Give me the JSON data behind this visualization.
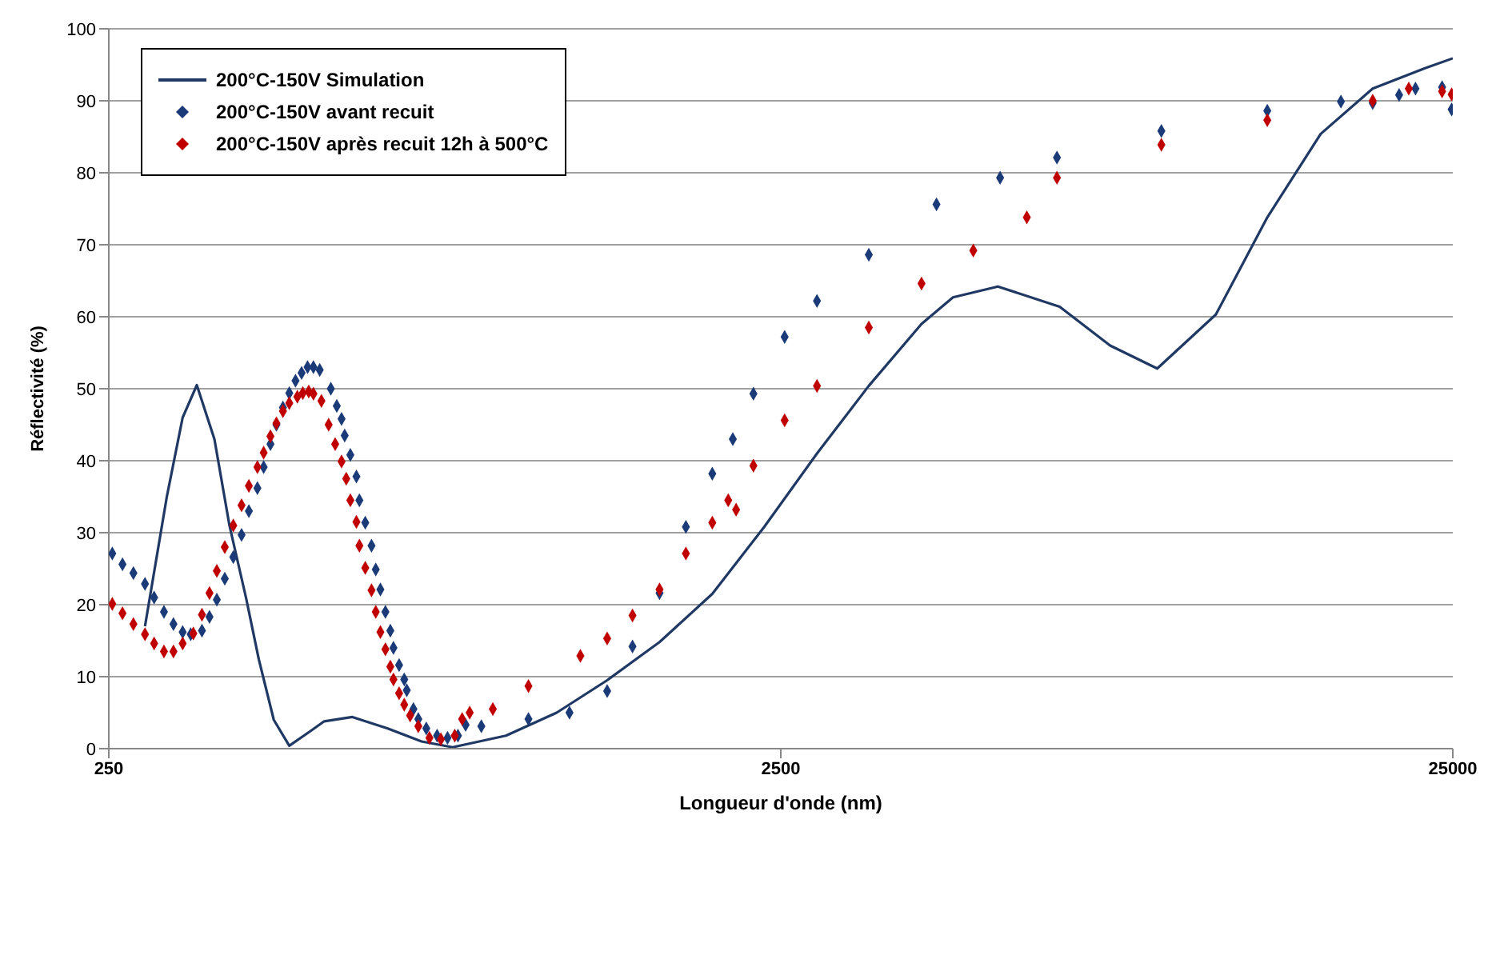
{
  "chart_data": {
    "type": "scatter",
    "xlabel": "Longueur d'onde (nm)",
    "ylabel": "Réflectivité (%)",
    "log": "x",
    "xlim": [
      250,
      25000
    ],
    "xticks": [
      250,
      2500,
      25000
    ],
    "ylim": [
      0,
      100
    ],
    "yticks": [
      0,
      10,
      20,
      30,
      40,
      50,
      60,
      70,
      80,
      90,
      100
    ],
    "grid": "y",
    "legend": "top left",
    "marker": "diamond",
    "series": [
      {
        "name": "200°C-150V Simulation",
        "type": "line",
        "marker": "none",
        "color": "#1f3864",
        "x": [
          283,
          305,
          322,
          338,
          359,
          378,
          400,
          418,
          440,
          464,
          500,
          523,
          576,
          650,
          730,
          812,
          975,
          1160,
          1379,
          1650,
          1977,
          2362,
          2830,
          3380,
          4049,
          4510,
          5260,
          6500,
          7727,
          9080,
          11100,
          13240,
          15900,
          19000,
          22690,
          25000
        ],
        "values": [
          17,
          35,
          46,
          50.5,
          43,
          31,
          21,
          12.4,
          4,
          0.4,
          2.5,
          3.8,
          4.4,
          2.8,
          1,
          0.2,
          1.8,
          5,
          9.5,
          14.8,
          21.5,
          30.8,
          41,
          50.4,
          59,
          62.7,
          64.2,
          61.4,
          56,
          52.8,
          60.3,
          73.8,
          85.4,
          91.7,
          94.5,
          95.9
        ]
      },
      {
        "name": "200°C-150V avant recuit",
        "color": "#1b3a78",
        "x": [
          253,
          262,
          272,
          283,
          292,
          302,
          312,
          322,
          331,
          344,
          353,
          362,
          372,
          383,
          394,
          404,
          416,
          425,
          435,
          444,
          454,
          464,
          474,
          484,
          494,
          504,
          515,
          535,
          546,
          555,
          561,
          572,
          584,
          590,
          602,
          615,
          624,
          634,
          645,
          656,
          663,
          676,
          688,
          694,
          710,
          722,
          742,
          770,
          798,
          827,
          849,
          896,
          1053,
          1212,
          1379,
          1504,
          1650,
          1806,
          1977,
          2121,
          2276,
          2533,
          2830,
          3380,
          4262,
          5300,
          6440,
          9210,
          13240,
          17040,
          19000,
          20800,
          22000,
          24100,
          24900
        ],
        "values": [
          27.1,
          25.6,
          24.4,
          22.9,
          21,
          19,
          17.3,
          16.2,
          15.9,
          16.4,
          18.3,
          20.7,
          23.6,
          26.6,
          29.7,
          33,
          36.2,
          39.1,
          42.3,
          45,
          47.4,
          49.4,
          51.1,
          52.2,
          53,
          53,
          52.6,
          50,
          47.6,
          45.8,
          43.5,
          40.8,
          37.8,
          34.5,
          31.4,
          28.2,
          24.9,
          22.1,
          19,
          16.4,
          14,
          11.6,
          9.6,
          8.1,
          5.5,
          4.1,
          2.8,
          1.8,
          1.5,
          1.8,
          3.3,
          3.1,
          4.1,
          5,
          8,
          14.2,
          21.6,
          30.8,
          38.2,
          43,
          49.3,
          57.2,
          62.2,
          68.6,
          75.6,
          79.3,
          82.1,
          85.8,
          88.6,
          89.9,
          89.7,
          90.8,
          91.7,
          91.9,
          88.8
        ]
      },
      {
        "name": "200°C-150V après recuit 12h à 500°C",
        "color": "#c00000",
        "x": [
          253,
          262,
          272,
          283,
          292,
          302,
          312,
          322,
          334,
          344,
          353,
          362,
          372,
          383,
          394,
          404,
          416,
          425,
          435,
          444,
          454,
          464,
          477,
          486,
          496,
          504,
          518,
          531,
          543,
          555,
          564,
          572,
          584,
          590,
          602,
          615,
          624,
          634,
          645,
          656,
          663,
          676,
          688,
          702,
          722,
          750,
          780,
          818,
          839,
          861,
          932,
          1053,
          1258,
          1379,
          1504,
          1650,
          1806,
          1977,
          2088,
          2145,
          2276,
          2533,
          2830,
          3380,
          4049,
          4835,
          5808,
          6440,
          9210,
          13240,
          19000,
          21500,
          24100,
          24900
        ],
        "values": [
          20.1,
          18.8,
          17.3,
          15.9,
          14.6,
          13.5,
          13.5,
          14.6,
          16,
          18.6,
          21.6,
          24.7,
          28,
          31,
          33.8,
          36.5,
          39.1,
          41.1,
          43.4,
          45.2,
          46.9,
          48,
          48.9,
          49.4,
          49.6,
          49.3,
          48.3,
          45,
          42.3,
          39.9,
          37.5,
          34.5,
          31.5,
          28.2,
          25.1,
          22,
          19,
          16.2,
          13.8,
          11.4,
          9.6,
          7.7,
          6.1,
          4.6,
          3.1,
          1.5,
          1.3,
          1.8,
          4.1,
          5,
          5.5,
          8.7,
          12.9,
          15.3,
          18.5,
          22.1,
          27.1,
          31.4,
          34.5,
          33.2,
          39.3,
          45.6,
          50.4,
          58.5,
          64.6,
          69.2,
          73.8,
          79.3,
          83.9,
          87.3,
          90,
          91.7,
          91.3,
          90.9
        ]
      }
    ]
  }
}
